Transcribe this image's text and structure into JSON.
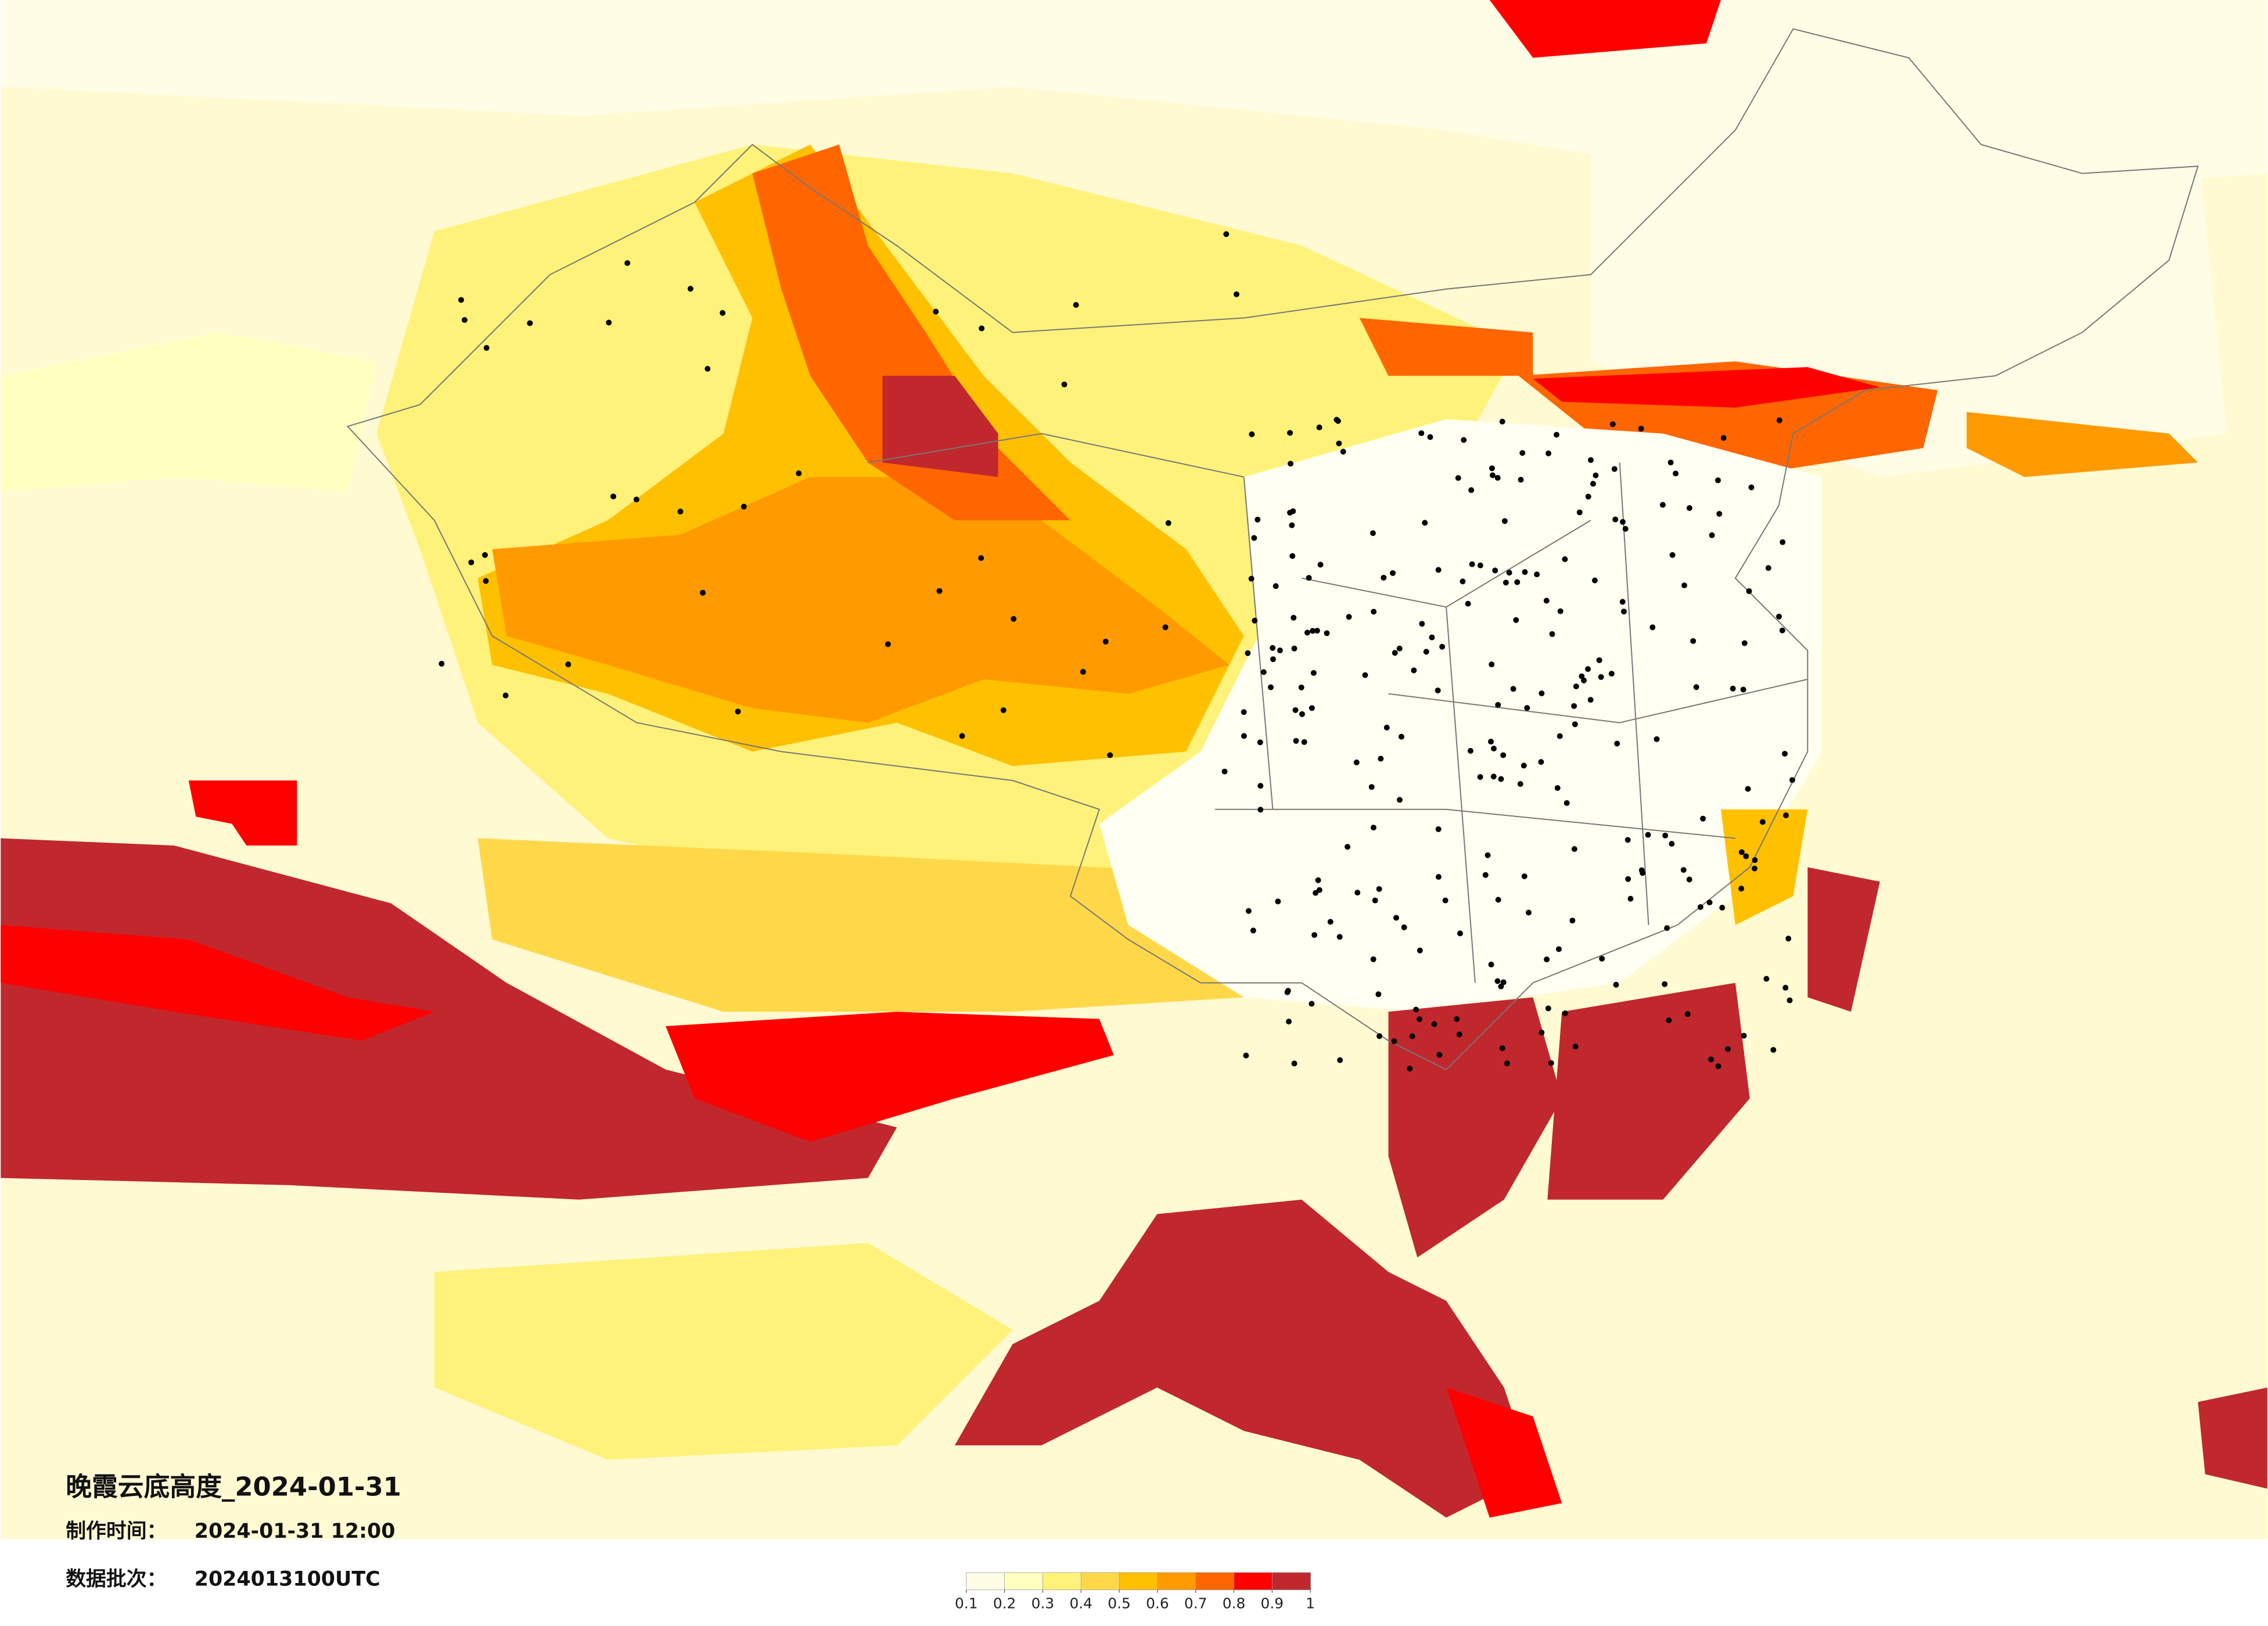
{
  "title": "晚霞云底高度_2024-01-31",
  "made_time": {
    "label": "制作时间：",
    "value": "2024-01-31 12:00"
  },
  "batch": {
    "label": "数据批次：",
    "value": "2024013100UTC"
  },
  "legend": {
    "colors": [
      "#fffde6",
      "#ffffc0",
      "#fff27a",
      "#ffd84a",
      "#ffc000",
      "#ff9a00",
      "#ff6600",
      "#ff0000",
      "#c0282d"
    ],
    "ticks": [
      0.1,
      0.2,
      0.3,
      0.4,
      0.5,
      0.6,
      0.7,
      0.8,
      0.9,
      1
    ]
  }
}
